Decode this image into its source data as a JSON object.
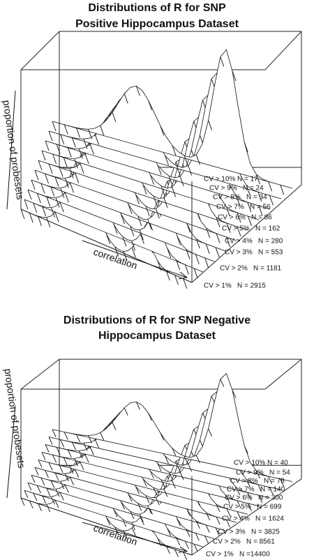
{
  "chart_data": [
    {
      "type": "persp",
      "title": [
        "Distributions of R for SNP",
        "Positive Hippocampus Dataset"
      ],
      "x_label": "correlation",
      "y_label": "proportion of probesets",
      "categories": [
        "CV > 10%",
        "CV > 9%",
        "CV > 8%",
        "CV > 7%",
        "CV > 6%",
        "CV > 5%",
        "CV > 4%",
        "CV > 3%",
        "CV > 2%",
        "CV > 1%"
      ],
      "values": [
        17,
        24,
        34,
        56,
        86,
        162,
        280,
        553,
        1181,
        2915
      ],
      "value_labels": [
        "N =  17",
        "N =  24",
        "N =  34",
        "N =  56",
        "N =  86",
        "N =  162",
        "N =  280",
        "N =  553",
        "N =  1181",
        "N = 2915"
      ]
    },
    {
      "type": "persp",
      "title": [
        "Distributions of R for SNP Negative",
        "Hippocampus Dataset"
      ],
      "x_label": "correlation",
      "y_label": "proportion of probesets",
      "categories": [
        "CV > 10%",
        "CV > 9%",
        "CV > 8%",
        "CV > 7%",
        "CV > 6%",
        "CV > 5%",
        "CV > 4%",
        "CV > 3%",
        "CV > 2%",
        "CV > 1%"
      ],
      "values": [
        40,
        54,
        78,
        140,
        300,
        699,
        1624,
        3825,
        8561,
        14400
      ],
      "value_labels": [
        "N =  40",
        "N =  54",
        "N =  78",
        "N =  140",
        "N =  300",
        "N =  699",
        "N =  1624",
        "N =  3825",
        "N =  8561",
        "N =14400"
      ]
    }
  ]
}
